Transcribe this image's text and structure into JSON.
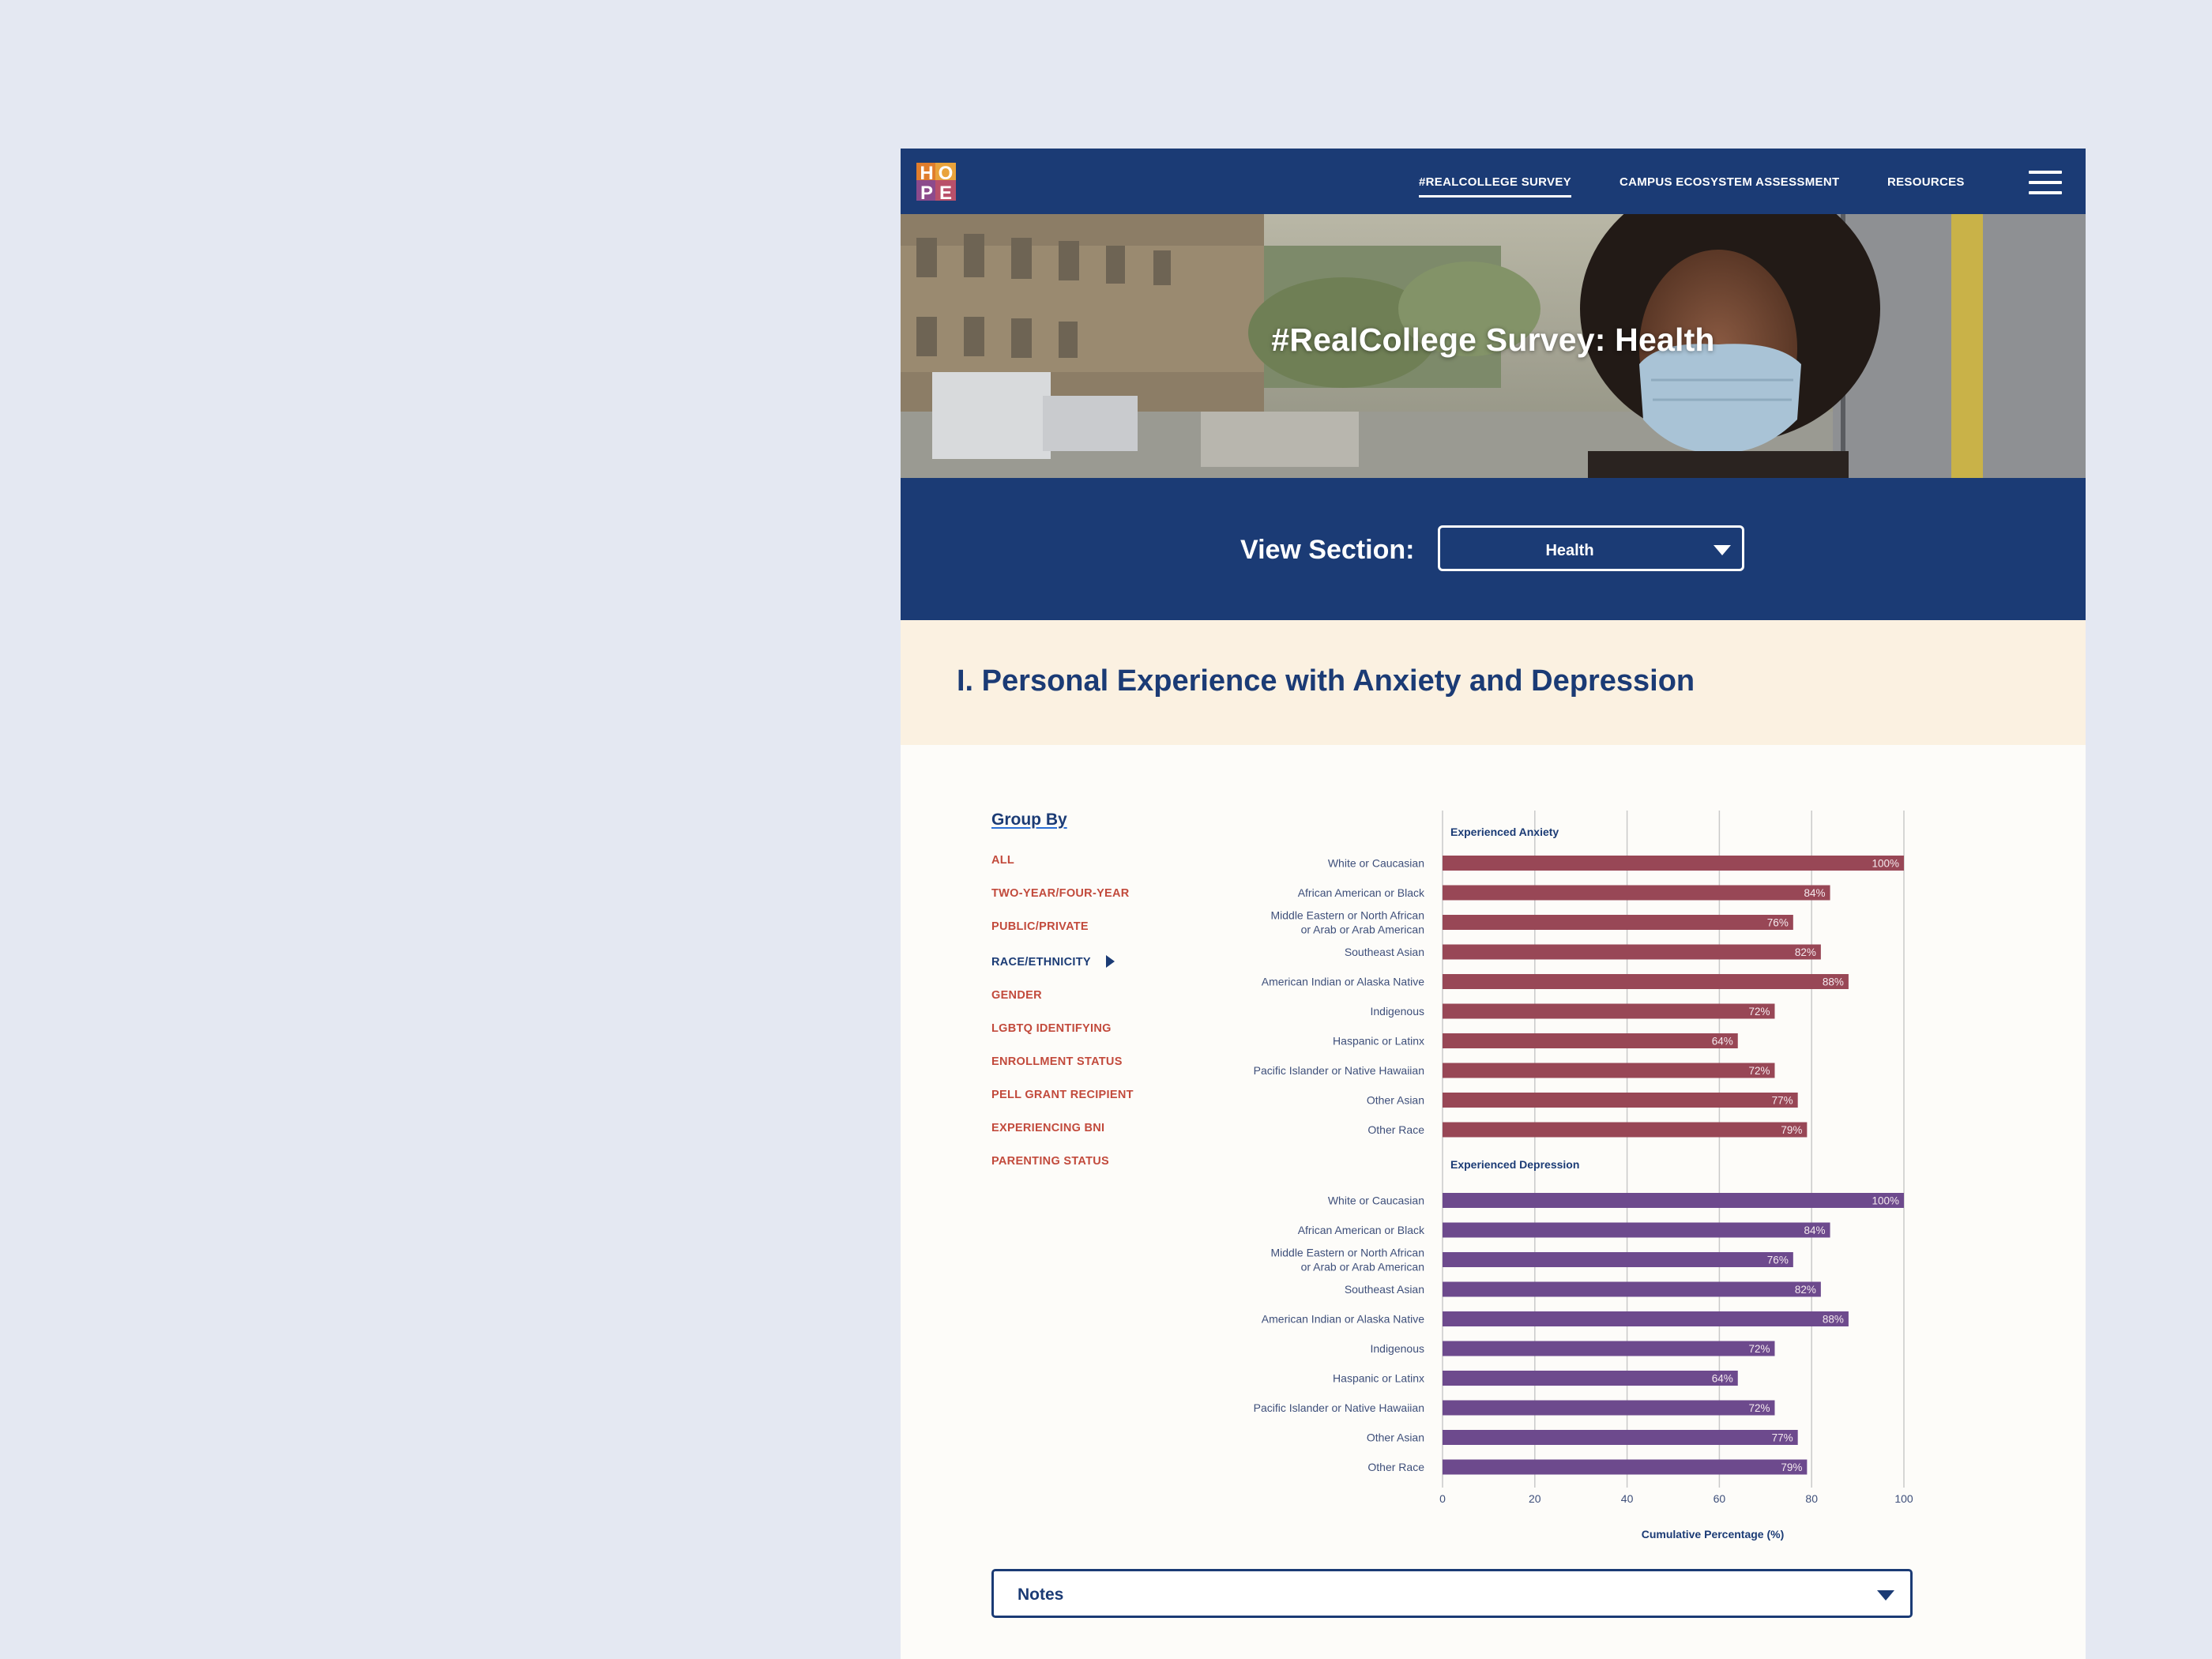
{
  "nav": {
    "logo_letters": [
      "H",
      "O",
      "P",
      "E"
    ],
    "links": [
      {
        "label": "#REALCOLLEGE SURVEY",
        "active": true
      },
      {
        "label": "CAMPUS ECOSYSTEM ASSESSMENT",
        "active": false
      },
      {
        "label": "RESOURCES",
        "active": false
      }
    ],
    "menu_icon": "hamburger-menu-icon"
  },
  "hero": {
    "title": "#RealCollege Survey: Health"
  },
  "section_select": {
    "label": "View Section:",
    "value": "Health",
    "icon": "caret-down-icon"
  },
  "section": {
    "heading": "I. Personal Experience with Anxiety and Depression"
  },
  "group_by": {
    "title": "Group By",
    "items": [
      {
        "label": "ALL",
        "active": false
      },
      {
        "label": "TWO-YEAR/FOUR-YEAR",
        "active": false
      },
      {
        "label": "PUBLIC/PRIVATE",
        "active": false
      },
      {
        "label": "RACE/ETHNICITY",
        "active": true
      },
      {
        "label": "GENDER",
        "active": false
      },
      {
        "label": "LGBTQ IDENTIFYING",
        "active": false
      },
      {
        "label": "ENROLLMENT STATUS",
        "active": false
      },
      {
        "label": "PELL GRANT RECIPIENT",
        "active": false
      },
      {
        "label": "EXPERIENCING BNI",
        "active": false
      },
      {
        "label": "PARENTING STATUS",
        "active": false
      }
    ]
  },
  "chart_data": {
    "type": "bar",
    "orientation": "horizontal",
    "xlabel": "Cumulative Percentage (%)",
    "xlim": [
      0,
      100
    ],
    "xticks": [
      0,
      20,
      40,
      60,
      80,
      100
    ],
    "grid": true,
    "categories": [
      "White or Caucasian",
      "African American or Black",
      "Middle Eastern or North African or Arab or Arab American",
      "Southeast Asian",
      "American Indian or Alaska Native",
      "Indigenous",
      "Haspanic or Latinx",
      "Pacific Islander or Native Hawaiian",
      "Other Asian",
      "Other Race"
    ],
    "series": [
      {
        "name": "Experienced Anxiety",
        "color": "#984756",
        "values": [
          100,
          84,
          76,
          82,
          88,
          72,
          64,
          72,
          77,
          79
        ]
      },
      {
        "name": "Experienced Depression",
        "color": "#6d4a8d",
        "values": [
          100,
          84,
          76,
          82,
          88,
          72,
          64,
          72,
          77,
          79
        ]
      }
    ]
  },
  "notes": {
    "label": "Notes",
    "icon": "caret-down-icon"
  }
}
